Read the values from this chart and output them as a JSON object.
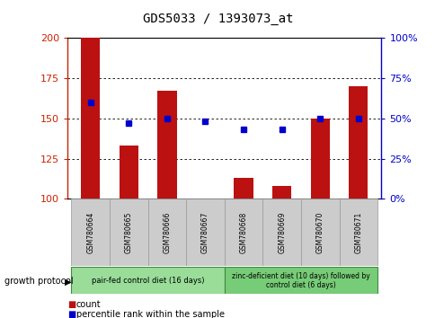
{
  "title": "GDS5033 / 1393073_at",
  "samples": [
    "GSM780664",
    "GSM780665",
    "GSM780666",
    "GSM780667",
    "GSM780668",
    "GSM780669",
    "GSM780670",
    "GSM780671"
  ],
  "counts": [
    200,
    133,
    167,
    100,
    113,
    108,
    150,
    170
  ],
  "percentiles": [
    60,
    47,
    50,
    48,
    43,
    43,
    50,
    50
  ],
  "ylim_left": [
    100,
    200
  ],
  "ylim_right": [
    0,
    100
  ],
  "yticks_left": [
    100,
    125,
    150,
    175,
    200
  ],
  "yticks_right": [
    0,
    25,
    50,
    75,
    100
  ],
  "ytick_labels_right": [
    "0%",
    "25%",
    "50%",
    "75%",
    "100%"
  ],
  "bar_color": "#bb1111",
  "dot_color": "#0000cc",
  "group1_label": "pair-fed control diet (16 days)",
  "group2_label": "zinc-deficient diet (10 days) followed by\ncontrol diet (6 days)",
  "group1_color": "#99dd99",
  "group2_color": "#77cc77",
  "growth_protocol_label": "growth protocol",
  "legend_count_label": "count",
  "legend_pct_label": "percentile rank within the sample",
  "grid_color": "#000000",
  "title_color": "#000000",
  "left_axis_color": "#cc2200",
  "right_axis_color": "#0000cc",
  "group_boundary": 4,
  "label_box_color": "#cccccc",
  "label_box_edge": "#999999"
}
